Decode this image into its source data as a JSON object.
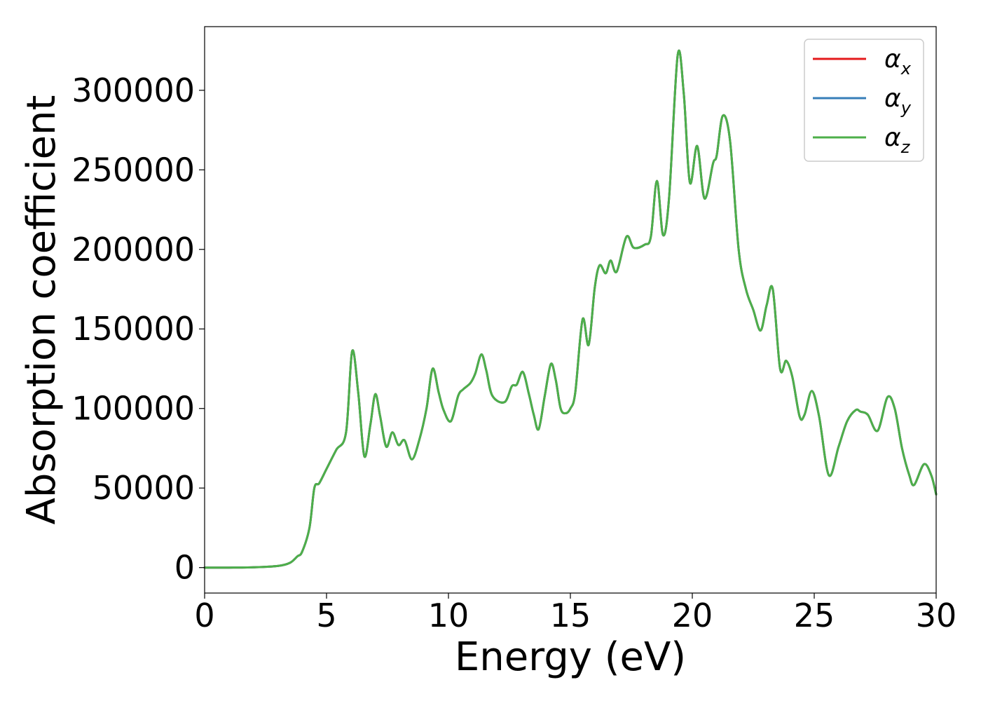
{
  "chart_data": {
    "type": "line",
    "xlabel": "Energy (eV)",
    "ylabel": "Absorption coefficient",
    "xlim": [
      0,
      30
    ],
    "ylim": [
      -16000,
      340000
    ],
    "xticks": [
      0,
      5,
      10,
      15,
      20,
      25,
      30
    ],
    "xtick_labels": [
      "0",
      "5",
      "10",
      "15",
      "20",
      "25",
      "30"
    ],
    "yticks": [
      0,
      50000,
      100000,
      150000,
      200000,
      250000,
      300000
    ],
    "ytick_labels": [
      "0",
      "50000",
      "100000",
      "150000",
      "200000",
      "250000",
      "300000"
    ],
    "grid": false,
    "legend_position": "top-right",
    "x": [
      0,
      1,
      2,
      3,
      3.5,
      3.8,
      4.0,
      4.3,
      4.5,
      4.7,
      5.0,
      5.4,
      5.8,
      6.05,
      6.3,
      6.55,
      6.8,
      7.0,
      7.2,
      7.45,
      7.7,
      7.95,
      8.2,
      8.5,
      8.8,
      9.1,
      9.35,
      9.6,
      9.8,
      10.1,
      10.4,
      10.6,
      10.9,
      11.1,
      11.35,
      11.55,
      11.8,
      12.3,
      12.6,
      12.8,
      13.05,
      13.3,
      13.5,
      13.7,
      13.95,
      14.2,
      14.4,
      14.6,
      14.8,
      15.0,
      15.2,
      15.5,
      15.75,
      16.0,
      16.2,
      16.45,
      16.65,
      16.9,
      17.3,
      17.6,
      18.05,
      18.3,
      18.55,
      18.8,
      19.05,
      19.4,
      19.65,
      19.9,
      20.2,
      20.5,
      20.85,
      21.0,
      21.25,
      21.55,
      21.9,
      22.2,
      22.5,
      22.8,
      23.05,
      23.3,
      23.6,
      23.85,
      24.1,
      24.4,
      24.6,
      24.9,
      25.2,
      25.6,
      26.0,
      26.35,
      26.7,
      26.9,
      27.2,
      27.6,
      28.0,
      28.3,
      28.6,
      28.9,
      29.1,
      29.5,
      29.8,
      30.0
    ],
    "series": [
      {
        "name": "α",
        "sub": "x",
        "color": "#e41a1c",
        "values": [
          0,
          0,
          200,
          1000,
          3000,
          7000,
          10000,
          25000,
          50000,
          53000,
          62000,
          74000,
          85000,
          136000,
          110000,
          70000,
          90000,
          109000,
          95000,
          76000,
          85000,
          77000,
          80000,
          68000,
          80000,
          100000,
          125000,
          110000,
          99000,
          92000,
          108000,
          112000,
          116000,
          122000,
          134000,
          124000,
          108000,
          104000,
          114000,
          115000,
          123000,
          109000,
          96000,
          87000,
          108000,
          128000,
          118000,
          100000,
          97000,
          100000,
          110000,
          156000,
          140000,
          176000,
          190000,
          185000,
          193000,
          186000,
          208000,
          201000,
          203000,
          208000,
          243000,
          209000,
          233000,
          322000,
          298000,
          242000,
          265000,
          232000,
          254000,
          259000,
          284000,
          268000,
          200000,
          175000,
          162000,
          149000,
          165000,
          175000,
          125000,
          130000,
          120000,
          95000,
          96000,
          111000,
          95000,
          58000,
          76000,
          92000,
          99000,
          98000,
          96000,
          86000,
          107000,
          100000,
          75000,
          58000,
          52000,
          65000,
          58000,
          46000
        ]
      },
      {
        "name": "α",
        "sub": "y",
        "color": "#377eb8",
        "values": [
          0,
          0,
          200,
          1000,
          3000,
          7000,
          10000,
          25000,
          50000,
          53000,
          62000,
          74000,
          85000,
          136000,
          110000,
          70000,
          90000,
          109000,
          95000,
          76000,
          85000,
          77000,
          80000,
          68000,
          80000,
          100000,
          125000,
          110000,
          99000,
          92000,
          108000,
          112000,
          116000,
          122000,
          134000,
          124000,
          108000,
          104000,
          114000,
          115000,
          123000,
          109000,
          96000,
          87000,
          108000,
          128000,
          118000,
          100000,
          97000,
          100000,
          110000,
          156000,
          140000,
          176000,
          190000,
          185000,
          193000,
          186000,
          208000,
          201000,
          203000,
          208000,
          243000,
          209000,
          233000,
          322000,
          298000,
          242000,
          265000,
          232000,
          254000,
          259000,
          284000,
          268000,
          200000,
          175000,
          162000,
          149000,
          165000,
          175000,
          125000,
          130000,
          120000,
          95000,
          96000,
          111000,
          95000,
          58000,
          76000,
          92000,
          99000,
          98000,
          96000,
          86000,
          107000,
          100000,
          75000,
          58000,
          52000,
          65000,
          58000,
          46000
        ]
      },
      {
        "name": "α",
        "sub": "z",
        "color": "#4daf4a",
        "values": [
          0,
          0,
          200,
          1000,
          3000,
          7000,
          10000,
          25000,
          50000,
          53000,
          62000,
          74000,
          85000,
          136000,
          110000,
          70000,
          90000,
          109000,
          95000,
          76000,
          85000,
          77000,
          80000,
          68000,
          80000,
          100000,
          125000,
          110000,
          99000,
          92000,
          108000,
          112000,
          116000,
          122000,
          134000,
          124000,
          108000,
          104000,
          114000,
          115000,
          123000,
          109000,
          96000,
          87000,
          108000,
          128000,
          118000,
          100000,
          97000,
          100000,
          110000,
          156000,
          140000,
          176000,
          190000,
          185000,
          193000,
          186000,
          208000,
          201000,
          203000,
          208000,
          243000,
          209000,
          233000,
          322000,
          298000,
          242000,
          265000,
          232000,
          254000,
          259000,
          284000,
          268000,
          200000,
          175000,
          162000,
          149000,
          165000,
          175000,
          125000,
          130000,
          120000,
          95000,
          96000,
          111000,
          95000,
          58000,
          76000,
          92000,
          99000,
          98000,
          96000,
          86000,
          107000,
          100000,
          75000,
          58000,
          52000,
          65000,
          58000,
          46000
        ]
      }
    ]
  }
}
